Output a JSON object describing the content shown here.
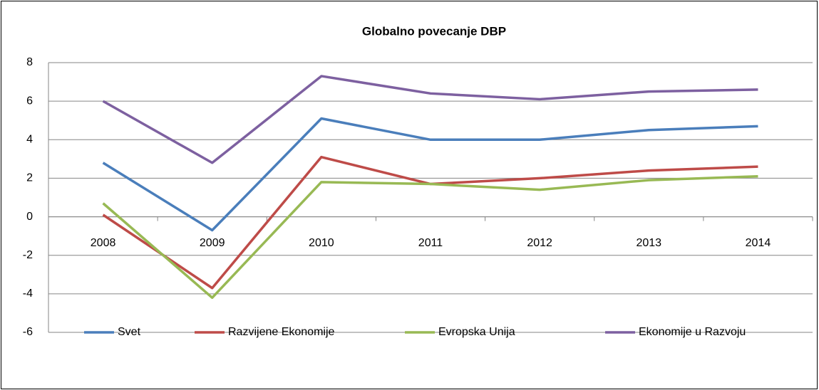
{
  "chart_data": {
    "type": "line",
    "title": "Globalno povecanje DBP",
    "categories": [
      "2008",
      "2009",
      "2010",
      "2011",
      "2012",
      "2013",
      "2014"
    ],
    "series": [
      {
        "name": "Svet",
        "color": "#4a7ebb",
        "values": [
          2.8,
          -0.7,
          5.1,
          4.0,
          4.0,
          4.5,
          4.7
        ]
      },
      {
        "name": "Razvijene Ekonomije",
        "color": "#be4b48",
        "values": [
          0.1,
          -3.7,
          3.1,
          1.7,
          2.0,
          2.4,
          2.6
        ]
      },
      {
        "name": "Evropska Unija",
        "color": "#98b954",
        "values": [
          0.7,
          -4.2,
          1.8,
          1.7,
          1.4,
          1.9,
          2.1
        ]
      },
      {
        "name": "Ekonomije u Razvoju",
        "color": "#7d60a0",
        "values": [
          6.0,
          2.8,
          7.3,
          6.4,
          6.1,
          6.5,
          6.6
        ]
      }
    ],
    "ylim": [
      -6,
      8
    ],
    "yticks": [
      -6,
      -4,
      -2,
      0,
      2,
      4,
      6,
      8
    ],
    "grid": true,
    "legend": "bottom"
  }
}
